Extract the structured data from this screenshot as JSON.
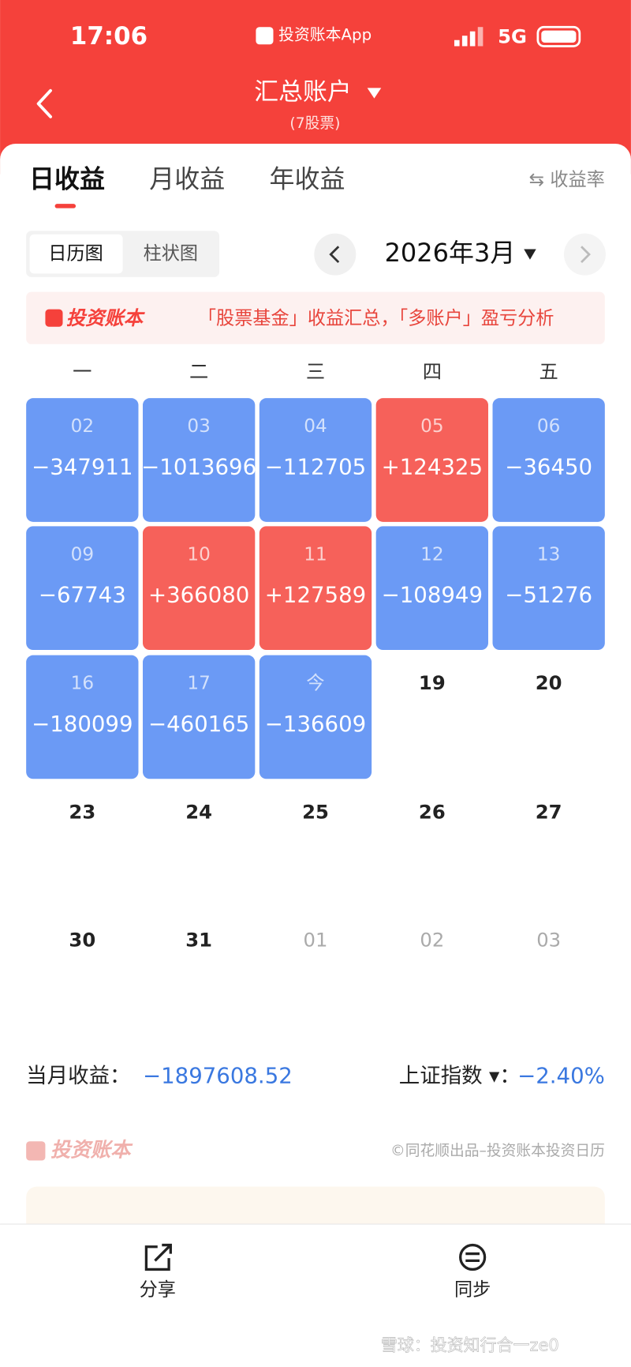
{
  "status_bar": {
    "time": "17:06",
    "app": "投资账本App",
    "network": "5G"
  },
  "header": {
    "title": "汇总账户",
    "subtitle": "(7股票)"
  },
  "tabs": {
    "items": [
      "日收益",
      "月收益",
      "年收益"
    ],
    "active": 0,
    "toggle": "⇆ 收益率"
  },
  "view_toggle": {
    "items": [
      "日历图",
      "柱状图"
    ],
    "active": 0
  },
  "month": {
    "label": "2026年3月"
  },
  "banner": {
    "logo": "投资账本",
    "text": "「股票基金」收益汇总，「多账户」盈亏分析"
  },
  "calendar": {
    "weekdays": [
      "一",
      "二",
      "三",
      "四",
      "五"
    ],
    "rows": [
      [
        {
          "date": "02",
          "value": "−347911",
          "fill": "#6b9af5"
        },
        {
          "date": "03",
          "value": "−1013696",
          "fill": "#6b9af5"
        },
        {
          "date": "04",
          "value": "−112705",
          "fill": "#6b9af5"
        },
        {
          "date": "05",
          "value": "+124325",
          "fill": "#f6615a"
        },
        {
          "date": "06",
          "value": "−36450",
          "fill": "#6b9af5"
        }
      ],
      [
        {
          "date": "09",
          "value": "−67743",
          "fill": "#6b9af5"
        },
        {
          "date": "10",
          "value": "+366080",
          "fill": "#f6615a"
        },
        {
          "date": "11",
          "value": "+127589",
          "fill": "#f6615a"
        },
        {
          "date": "12",
          "value": "−108949",
          "fill": "#6b9af5"
        },
        {
          "date": "13",
          "value": "−51276",
          "fill": "#6b9af5"
        }
      ],
      [
        {
          "date": "16",
          "value": "−180099",
          "fill": "#6b9af5"
        },
        {
          "date": "17",
          "value": "−460165",
          "fill": "#6b9af5"
        },
        {
          "date": "今",
          "value": "−136609",
          "fill": "#6b9af5"
        },
        {
          "date": "19",
          "text_color": "#222222"
        },
        {
          "date": "20",
          "text_color": "#222222"
        }
      ],
      [
        {
          "date": "23",
          "text_color": "#222222"
        },
        {
          "date": "24",
          "text_color": "#222222"
        },
        {
          "date": "25",
          "text_color": "#222222"
        },
        {
          "date": "26",
          "text_color": "#222222"
        },
        {
          "date": "27",
          "text_color": "#222222"
        }
      ],
      [
        {
          "date": "30",
          "text_color": "#222222"
        },
        {
          "date": "31",
          "text_color": "#222222"
        },
        {
          "date": "01",
          "text_color": "#aaaaaa"
        },
        {
          "date": "02",
          "text_color": "#aaaaaa"
        },
        {
          "date": "03",
          "text_color": "#aaaaaa"
        }
      ]
    ]
  },
  "summary": {
    "label": "当月收益：",
    "value": "−1897608.52",
    "index_label": "上证指数 ▾：",
    "index_value": "−2.40%"
  },
  "footer": {
    "logo": "投资账本",
    "credit": "©同花顺出品–投资账本投资日历"
  },
  "bottom_bar": {
    "items": [
      "分享",
      "同步"
    ]
  },
  "watermark": "雪球：投资知行合一ze0"
}
